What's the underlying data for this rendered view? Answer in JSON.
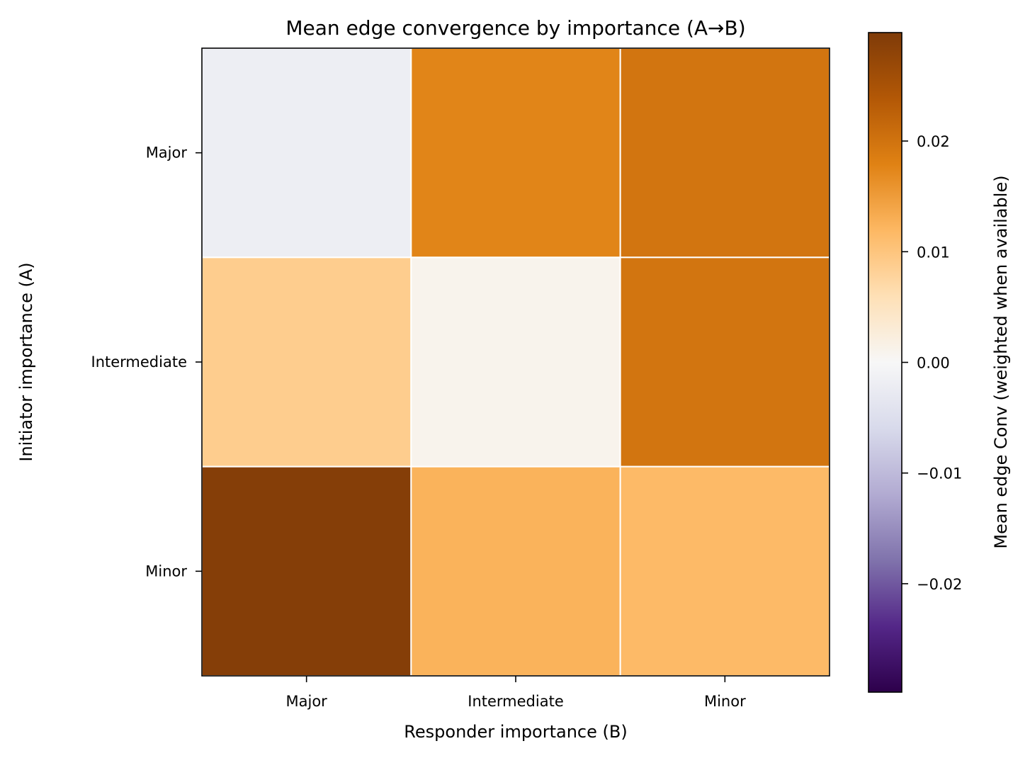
{
  "chart_data": {
    "type": "heatmap",
    "title": "Mean edge convergence by importance (A→B)",
    "xlabel": "Responder importance (B)",
    "ylabel": "Initiator importance (A)",
    "x_categories": [
      "Major",
      "Intermediate",
      "Minor"
    ],
    "y_categories": [
      "Major",
      "Intermediate",
      "Minor"
    ],
    "values": [
      [
        -0.0019,
        0.0176,
        0.0197
      ],
      [
        0.0088,
        0.001,
        0.0197
      ],
      [
        0.0291,
        0.0125,
        0.0116
      ]
    ],
    "colorbar": {
      "label": "Mean edge Conv (weighted when available)",
      "range": [
        -0.0298,
        0.0298
      ],
      "ticks": [
        -0.02,
        -0.01,
        0.0,
        0.01,
        0.02
      ],
      "tick_labels": [
        "−0.02",
        "−0.01",
        "0.00",
        "0.01",
        "0.02"
      ],
      "colormap": "PuOr_r",
      "colors": [
        "#2d004b",
        "#542788",
        "#8073ac",
        "#b2abd2",
        "#d8daeb",
        "#f7f7f7",
        "#fee0b6",
        "#fdb863",
        "#e08214",
        "#b35806",
        "#7f3b08"
      ]
    },
    "grid": false,
    "cell_border_color": "#ffffff"
  }
}
